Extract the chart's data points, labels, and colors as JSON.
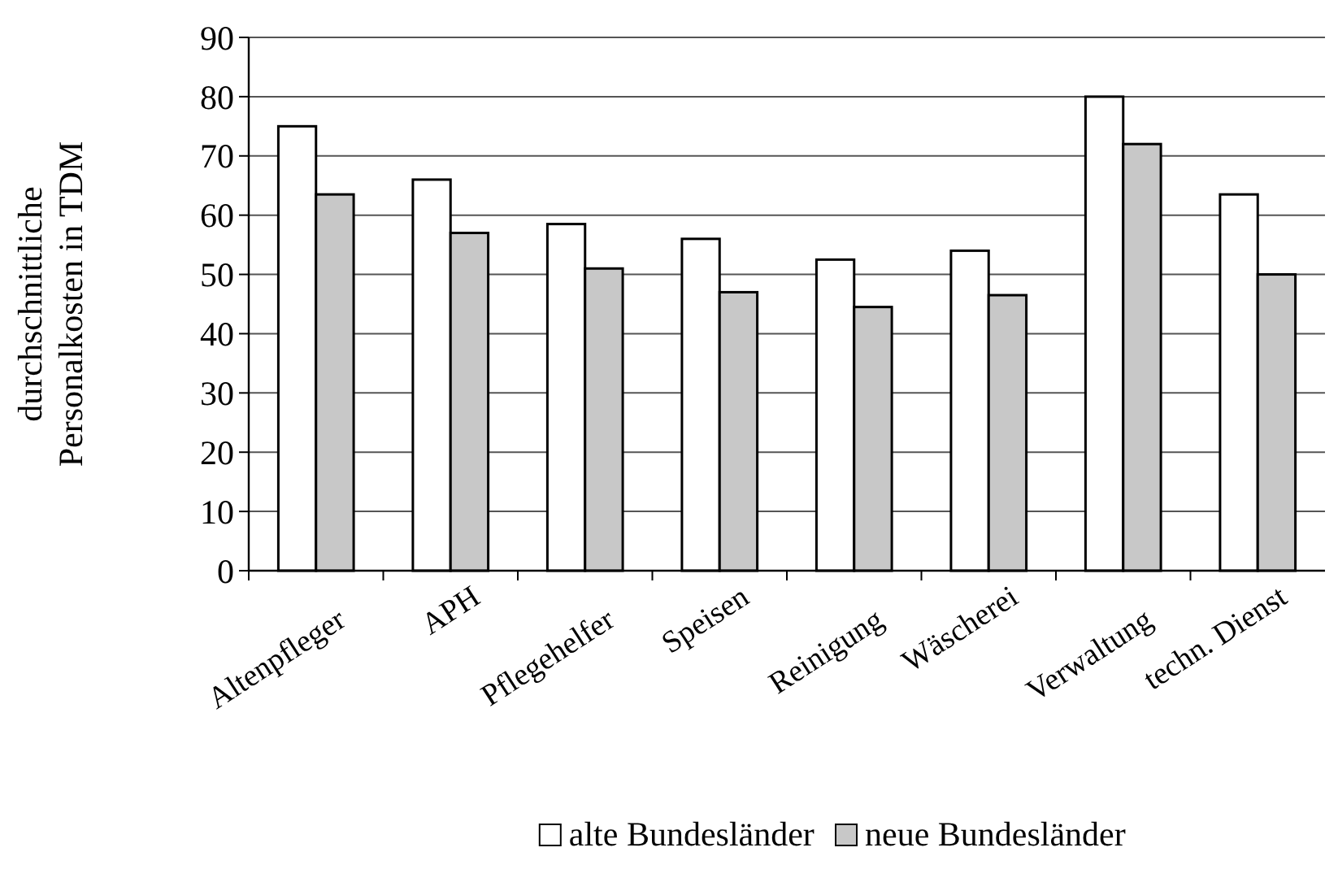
{
  "chart_data": {
    "type": "bar",
    "ylabel": "durchschnittliche\nPersonalkosten in TDM",
    "categories": [
      "Altenpfleger",
      "APH",
      "Pflegehelfer",
      "Speisen",
      "Reinigung",
      "Wäscherei",
      "Verwaltung",
      "techn. Dienst"
    ],
    "series": [
      {
        "name": "alte Bundesländer",
        "color": "#ffffff",
        "values": [
          75,
          66,
          58.5,
          56,
          52.5,
          54,
          80,
          63.5
        ]
      },
      {
        "name": "neue Bundesländer",
        "color": "#c8c8c8",
        "values": [
          63.5,
          57,
          51,
          47,
          44.5,
          46.5,
          72,
          50
        ]
      }
    ],
    "ylim": [
      0,
      90
    ],
    "yticks": [
      0,
      10,
      20,
      30,
      40,
      50,
      60,
      70,
      80,
      90
    ],
    "grid": "y",
    "legend": "bottom"
  }
}
